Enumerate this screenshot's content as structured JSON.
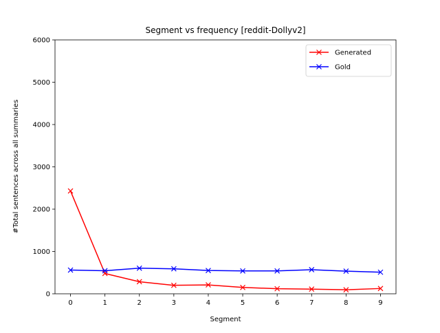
{
  "chart_data": {
    "type": "line",
    "title": "Segment vs frequency [reddit-Dollyv2]",
    "xlabel": "Segment",
    "ylabel": "#Total sentences across all summaries",
    "x": [
      0,
      1,
      2,
      3,
      4,
      5,
      6,
      7,
      8,
      9
    ],
    "xlim": [
      -0.45,
      9.45
    ],
    "ylim": [
      0,
      6000
    ],
    "yticks": [
      0,
      1000,
      2000,
      3000,
      4000,
      5000,
      6000
    ],
    "grid": false,
    "legend_position": "top-right",
    "series": [
      {
        "name": "Generated",
        "color": "#ff0000",
        "marker": "x",
        "values": [
          2430,
          480,
          285,
          200,
          210,
          150,
          120,
          110,
          95,
          125
        ]
      },
      {
        "name": "Gold",
        "color": "#0000ff",
        "marker": "x",
        "values": [
          560,
          545,
          605,
          590,
          550,
          540,
          540,
          570,
          535,
          510
        ]
      }
    ]
  }
}
